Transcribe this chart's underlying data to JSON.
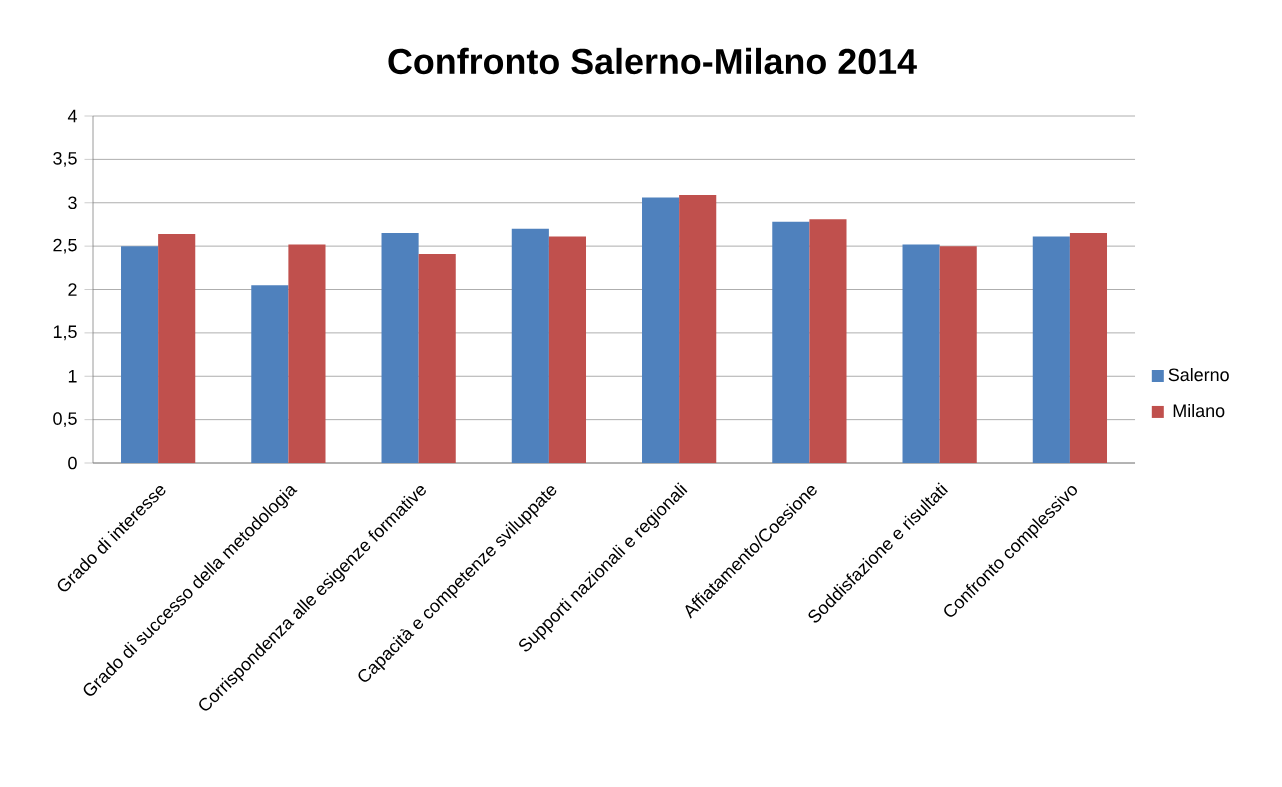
{
  "chart_data": {
    "type": "bar",
    "title": "Confronto Salerno-Milano 2014",
    "categories": [
      "Grado di interesse",
      "Grado di successo della metodologia",
      "Corrispondenza alle esigenze formative",
      "Capacità e competenze sviluppate",
      "Supporti nazionali e regionali",
      "Affiatamento/Coesione",
      "Soddisfazione e risultati",
      "Confronto complessivo"
    ],
    "series": [
      {
        "name": "Salerno",
        "color": "#4f81bd",
        "values": [
          2.5,
          2.05,
          2.65,
          2.7,
          3.06,
          2.78,
          2.52,
          2.61
        ]
      },
      {
        "name": "Milano",
        "color": "#c0504d",
        "values": [
          2.64,
          2.52,
          2.41,
          2.61,
          3.09,
          2.81,
          2.5,
          2.65
        ]
      }
    ],
    "ylim": [
      0,
      4
    ],
    "yticks": [
      0,
      {
        "value": 0.5,
        "label": "0,5"
      },
      1,
      {
        "value": 1.5,
        "label": "1,5"
      },
      2,
      {
        "value": 2.5,
        "label": "2,5"
      },
      3,
      {
        "value": 3.5,
        "label": "3,5"
      },
      4
    ],
    "grid": "y",
    "legend": "right"
  }
}
